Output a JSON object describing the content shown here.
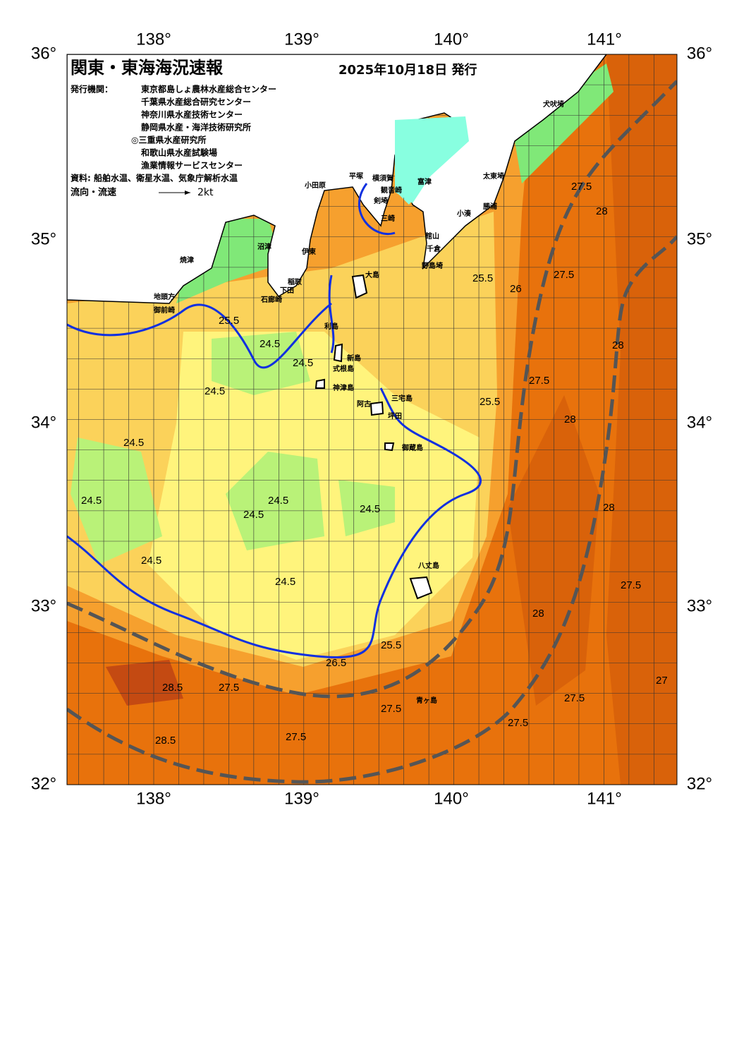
{
  "header": {
    "title": "関東・東海海況速報",
    "date": "2025年10月18日 発行"
  },
  "issuers": {
    "label": "発行機関：",
    "list": [
      "東京都島しょ農林水産総合センター",
      "千葉県水産総合研究センター",
      "神奈川県水産技術センター",
      "静岡県水産・海洋技術研究所",
      "◎三重県水産研究所",
      "和歌山県水産試験場",
      "漁業情報サービスセンター"
    ]
  },
  "source": "資料: 船舶水温、衛星水温、気象庁解析水温",
  "legend": {
    "label": "流向・流速",
    "scale": "2kt"
  },
  "axes": {
    "lon": [
      "138°",
      "139°",
      "140°",
      "141°"
    ],
    "lat": [
      "36°",
      "35°",
      "34°",
      "33°",
      "32°"
    ]
  },
  "places": [
    "犬吠埼",
    "太東埼",
    "勝浦",
    "小湊",
    "千倉",
    "野島埼",
    "館山",
    "富津",
    "観音崎",
    "横須賀",
    "平塚",
    "小田原",
    "剣埼",
    "三崎",
    "大島",
    "伊東",
    "沼津",
    "焼津",
    "地頭方",
    "御前崎",
    "稲取",
    "下田",
    "石廊崎",
    "利島",
    "新島",
    "式根島",
    "神津島",
    "三宅島",
    "御蔵島",
    "八丈島",
    "青ヶ島",
    "坪田",
    "阿古"
  ],
  "contours": [
    "25.5",
    "24.5",
    "24.5",
    "24.5",
    "24.5",
    "24.5",
    "24.5",
    "24.5",
    "24.5",
    "24.5",
    "24.5",
    "25.5",
    "26.5",
    "27.5",
    "28.5",
    "28.5",
    "27.5",
    "27.5",
    "27.5",
    "27.5",
    "28",
    "27.5",
    "28",
    "27.5",
    "28",
    "28",
    "27.5",
    "28",
    "27",
    "25.5",
    "25.5",
    "26",
    "27.5"
  ]
}
